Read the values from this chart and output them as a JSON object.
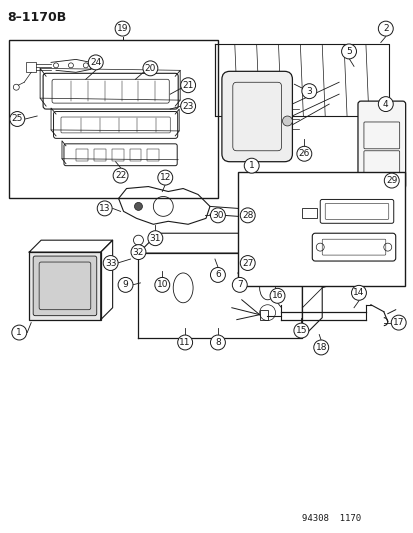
{
  "title": "8–1170B",
  "footer": "94308  1170",
  "bg_color": "#ffffff",
  "line_color": "#1a1a1a",
  "fig_width": 4.14,
  "fig_height": 5.33,
  "dpi": 100
}
